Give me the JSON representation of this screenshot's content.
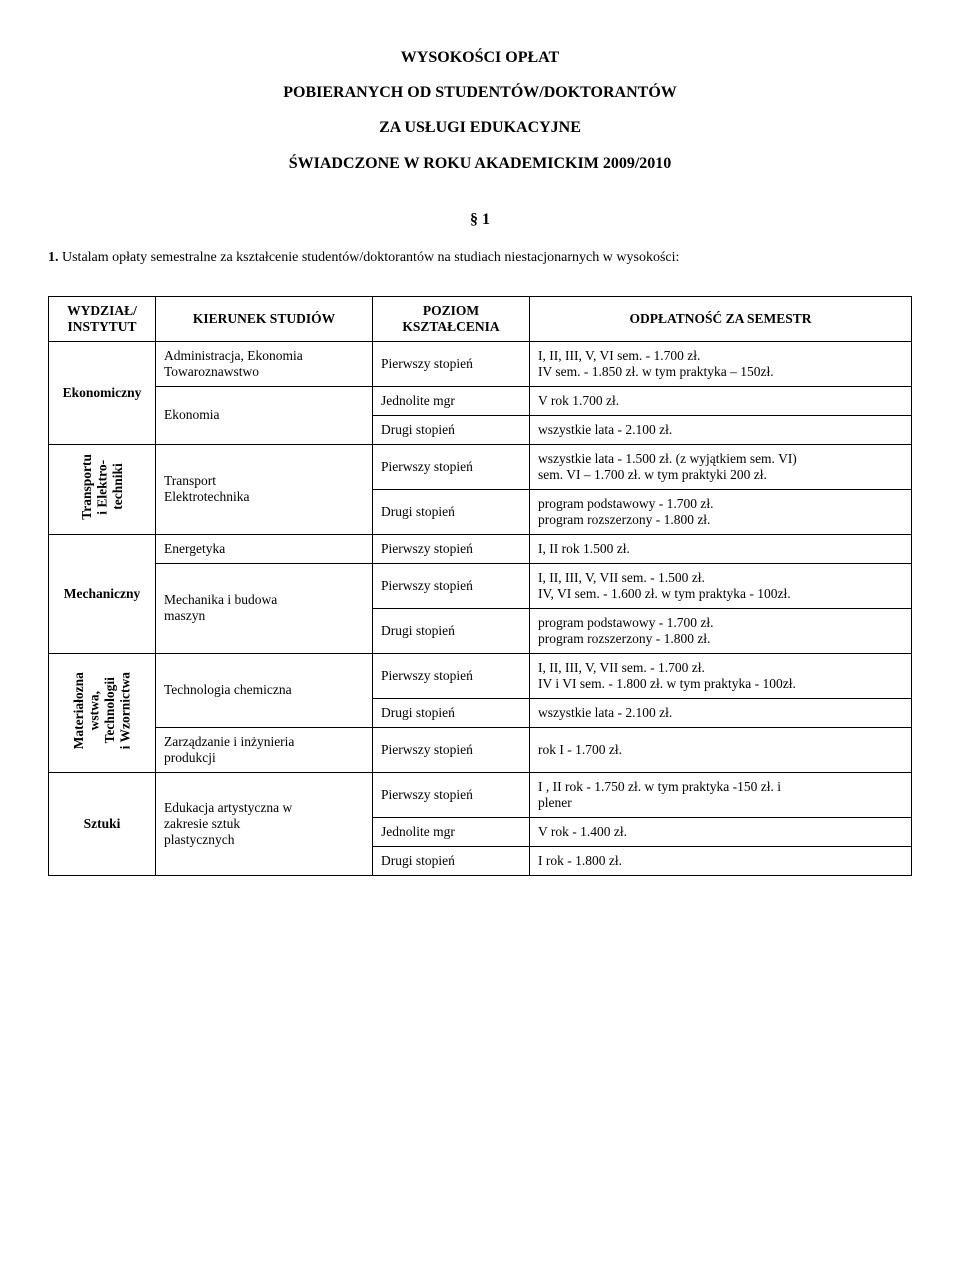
{
  "title": {
    "line1": "WYSOKOŚCI  OPŁAT",
    "line2": "POBIERANYCH  OD STUDENTÓW/DOKTORANTÓW",
    "line3": "ZA  USŁUGI  EDUKACYJNE",
    "line4": "ŚWIADCZONE  W ROKU  AKADEMICKIM  2009/2010"
  },
  "section_symbol": "§ 1",
  "intro": {
    "num": "1.",
    "text": "Ustalam opłaty semestralne za kształcenie studentów/doktorantów na studiach niestacjonarnych w wysokości:"
  },
  "headers": {
    "dept": "WYDZIAŁ/\nINSTYTUT",
    "dir": "KIERUNEK STUDIÓW",
    "level": "POZIOM\nKSZTAŁCENIA",
    "fee": "ODPŁATNOŚĆ ZA SEMESTR"
  },
  "rows": {
    "ekon": {
      "dept": "Ekonomiczny",
      "dir1": "Administracja, Ekonomia\nTowaroznawstwo",
      "dir2": "Ekonomia",
      "lvl1": "Pierwszy stopień",
      "lvl2": "Jednolite mgr",
      "lvl3": "Drugi stopień",
      "fee1": "I, II, III, V, VI sem.    - 1.700 zł.\nIV  sem.  - 1.850 zł. w tym praktyka – 150zł.",
      "fee2": "V rok  1.700 zł.",
      "fee3": "wszystkie lata - 2.100  zł."
    },
    "trans": {
      "dept": "Transportu\ni Elektro-\ntechniki",
      "dir": "Transport\nElektrotechnika",
      "lvl1": "Pierwszy stopień",
      "lvl2": "Drugi stopień",
      "fee1": "wszystkie lata - 1.500 zł. (z wyjątkiem sem. VI)\nsem. VI – 1.700 zł. w tym praktyki 200 zł.",
      "fee2": "program podstawowy - 1.700 zł.\nprogram rozszerzony   - 1.800 zł."
    },
    "mech": {
      "dept": "Mechaniczny",
      "dir1": "Energetyka",
      "dir2": "Mechanika  i budowa\n  maszyn",
      "lvl1": "Pierwszy stopień",
      "lvl2": "Pierwszy stopień",
      "lvl3": "Drugi stopień",
      "fee1": "I, II rok 1.500 zł.",
      "fee2": "I, II, III, V, VII sem. - 1.500 zł.\nIV, VI  sem. - 1.600 zł. w tym praktyka - 100zł.",
      "fee3": "program podstawowy - 1.700 zł.\nprogram rozszerzony - 1.800 zł."
    },
    "mat": {
      "dept": "Materiałozna\nwstwa,\nTechnologii\ni Wzornictwa",
      "dir1": "Technologia chemiczna",
      "dir2": "Zarządzanie i inżynieria\nprodukcji",
      "lvl1": "Pierwszy stopień",
      "lvl2": "Drugi stopień",
      "lvl3": "Pierwszy stopień",
      "fee1": "I, II, III, V, VII  sem. - 1.700 zł.\nIV i VI sem. - 1.800 zł. w tym praktyka - 100zł.",
      "fee2": "wszystkie lata - 2.100 zł.",
      "fee3": "rok I  - 1.700 zł."
    },
    "sztuki": {
      "dept": "Sztuki",
      "dir": "Edukacja artystyczna w\nzakresie  sztuk\nplastycznych",
      "lvl1": "Pierwszy stopień",
      "lvl2": "Jednolite mgr",
      "lvl3": "Drugi stopień",
      "fee1": "I , II rok  - 1.750 zł. w tym praktyka -150 zł. i\nplener",
      "fee2": "V rok  - 1.400 zł.",
      "fee3": "I rok - 1.800 zł."
    }
  }
}
